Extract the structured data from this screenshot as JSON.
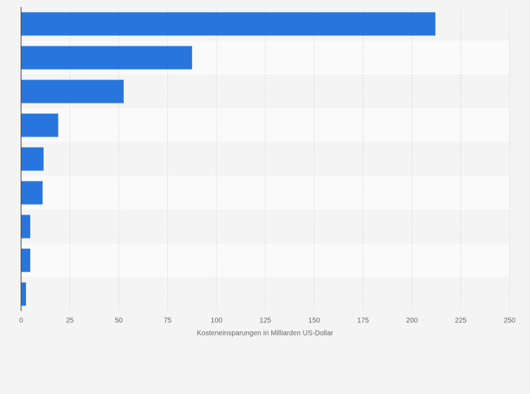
{
  "chart_data": {
    "type": "bar",
    "orientation": "horizontal",
    "categories": [
      null,
      null,
      null,
      null,
      null,
      null,
      null,
      null,
      null
    ],
    "values": [
      212,
      87.5,
      52.5,
      19,
      11.5,
      11,
      4.7,
      4.7,
      2.5
    ],
    "color": "#2876dd",
    "xlabel": "Kosteneinsparungen in Milliarden US-Dollar",
    "xlim": [
      0,
      250
    ],
    "xticks": [
      0,
      25,
      50,
      75,
      100,
      125,
      150,
      175,
      200,
      225,
      250
    ],
    "grid": true
  }
}
